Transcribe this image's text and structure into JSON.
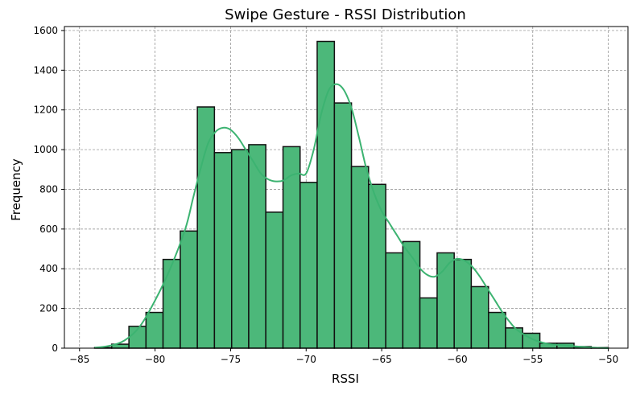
{
  "chart_data": {
    "type": "bar",
    "title": "Swipe Gesture - RSSI Distribution",
    "xlabel": "RSSI",
    "ylabel": "Frequency",
    "xlim": [
      -86,
      -48.7
    ],
    "ylim": [
      0,
      1620
    ],
    "x_ticks": [
      -85,
      -80,
      -75,
      -70,
      -65,
      -60,
      -55,
      -50
    ],
    "x_tick_labels": [
      "−85",
      "−80",
      "−75",
      "−70",
      "−65",
      "−60",
      "−55",
      "−50"
    ],
    "y_ticks": [
      0,
      200,
      400,
      600,
      800,
      1000,
      1200,
      1400,
      1600
    ],
    "y_tick_labels": [
      "0",
      "200",
      "400",
      "600",
      "800",
      "1000",
      "1200",
      "1400",
      "1600"
    ],
    "grid": true,
    "bin_edges": [
      -84.0,
      -82.87,
      -81.73,
      -80.6,
      -79.47,
      -78.33,
      -77.2,
      -76.07,
      -74.93,
      -73.8,
      -72.67,
      -71.53,
      -70.4,
      -69.27,
      -68.13,
      -67.0,
      -65.87,
      -64.73,
      -63.6,
      -62.47,
      -61.33,
      -60.2,
      -59.07,
      -57.93,
      -56.8,
      -55.67,
      -54.53,
      -53.4,
      -52.27,
      -51.13,
      -50.0
    ],
    "counts": [
      3,
      20,
      110,
      180,
      447,
      590,
      1215,
      985,
      1000,
      1025,
      685,
      1015,
      835,
      1545,
      1235,
      915,
      825,
      480,
      537,
      253,
      480,
      447,
      310,
      180,
      102,
      75,
      25,
      25,
      8,
      3
    ],
    "kde": {
      "x": [
        -84,
        -83,
        -82,
        -81,
        -80,
        -79,
        -78,
        -77.5,
        -77,
        -76.5,
        -76,
        -75.5,
        -75,
        -74.5,
        -74,
        -73.5,
        -73,
        -72.5,
        -72,
        -71.5,
        -71,
        -70.5,
        -70,
        -69.5,
        -69,
        -68.5,
        -68,
        -67.5,
        -67,
        -66.5,
        -66,
        -65.5,
        -65,
        -64.5,
        -64,
        -63.5,
        -63,
        -62.5,
        -62,
        -61.5,
        -61,
        -60.5,
        -60,
        -59.5,
        -59,
        -58.5,
        -58,
        -57.5,
        -57,
        -56.5,
        -56,
        -55,
        -54,
        -53,
        -52,
        -51,
        -50
      ],
      "y": [
        3,
        12,
        40,
        110,
        240,
        400,
        600,
        750,
        900,
        1030,
        1090,
        1110,
        1100,
        1060,
        1000,
        940,
        880,
        850,
        840,
        845,
        870,
        880,
        880,
        1000,
        1180,
        1300,
        1330,
        1300,
        1210,
        1060,
        900,
        780,
        690,
        630,
        570,
        510,
        460,
        405,
        370,
        360,
        385,
        430,
        450,
        440,
        410,
        360,
        300,
        240,
        180,
        130,
        90,
        45,
        22,
        15,
        8,
        3,
        0
      ]
    },
    "colors": {
      "bar_fill": "#4cb87a",
      "bar_edge": "#111111",
      "kde_line": "#3cb371",
      "grid": "#888888"
    }
  }
}
